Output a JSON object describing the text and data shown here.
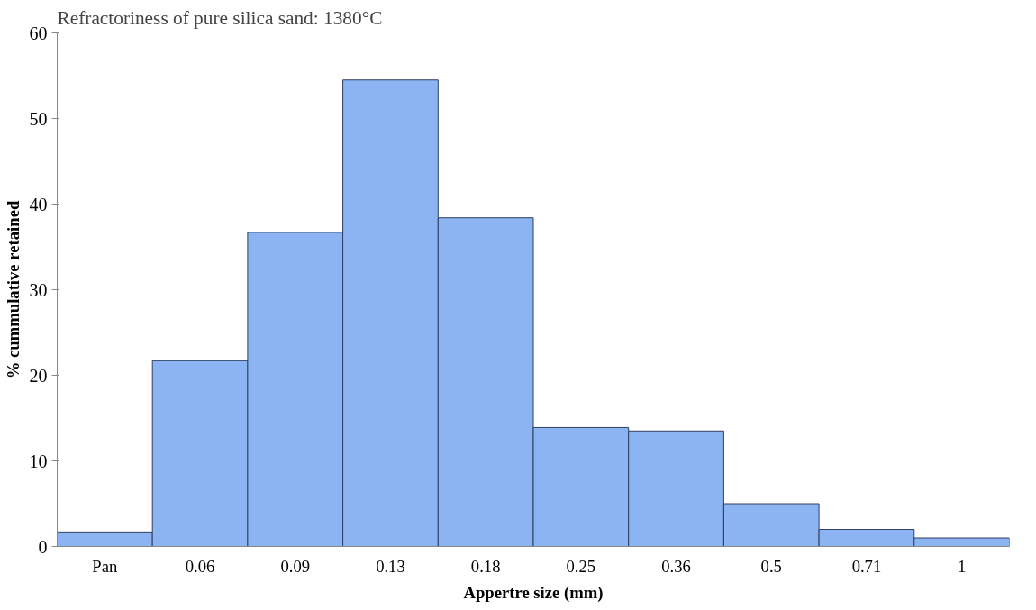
{
  "chart_data": {
    "type": "bar",
    "xlabel": "Appertre size (mm)",
    "ylabel": "% cummulative retained",
    "annotations": [
      "Refractoriness of pure silica sand: 1380°C"
    ],
    "categories": [
      "Pan",
      "0.06",
      "0.09",
      "0.13",
      "0.18",
      "0.25",
      "0.36",
      "0.5",
      "0.71",
      "1"
    ],
    "values": [
      1.7,
      21.7,
      36.7,
      54.5,
      38.4,
      13.9,
      13.5,
      5.0,
      2.0,
      1.0
    ],
    "color": "#8db4f2",
    "ylim": [
      0,
      60
    ],
    "yticks": [
      0,
      10,
      20,
      30,
      40,
      50,
      60
    ],
    "grid": false
  }
}
